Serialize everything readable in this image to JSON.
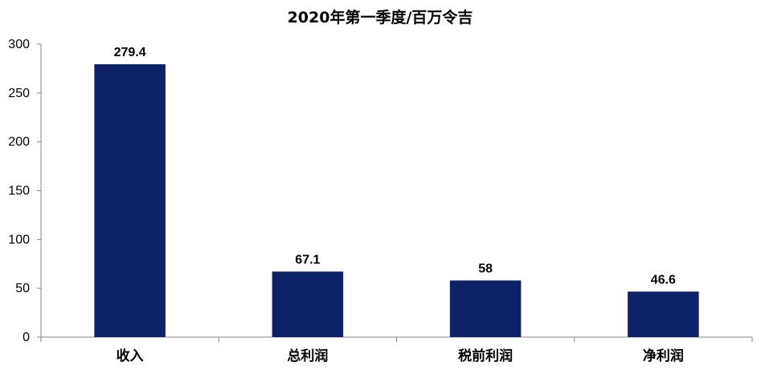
{
  "chart_data": {
    "type": "bar",
    "title": "2020年第一季度/百万令吉",
    "categories": [
      "收入",
      "总利润",
      "税前利润",
      "净利润"
    ],
    "values": [
      279.4,
      67.1,
      58,
      46.6
    ],
    "value_labels": [
      "279.4",
      "67.1",
      "58",
      "46.6"
    ],
    "xlabel": "",
    "ylabel": "",
    "ylim": [
      0,
      300
    ],
    "yticks": [
      0,
      50,
      100,
      150,
      200,
      250,
      300
    ],
    "grid": false,
    "legend": "none",
    "bar_color": "#0D2167"
  }
}
